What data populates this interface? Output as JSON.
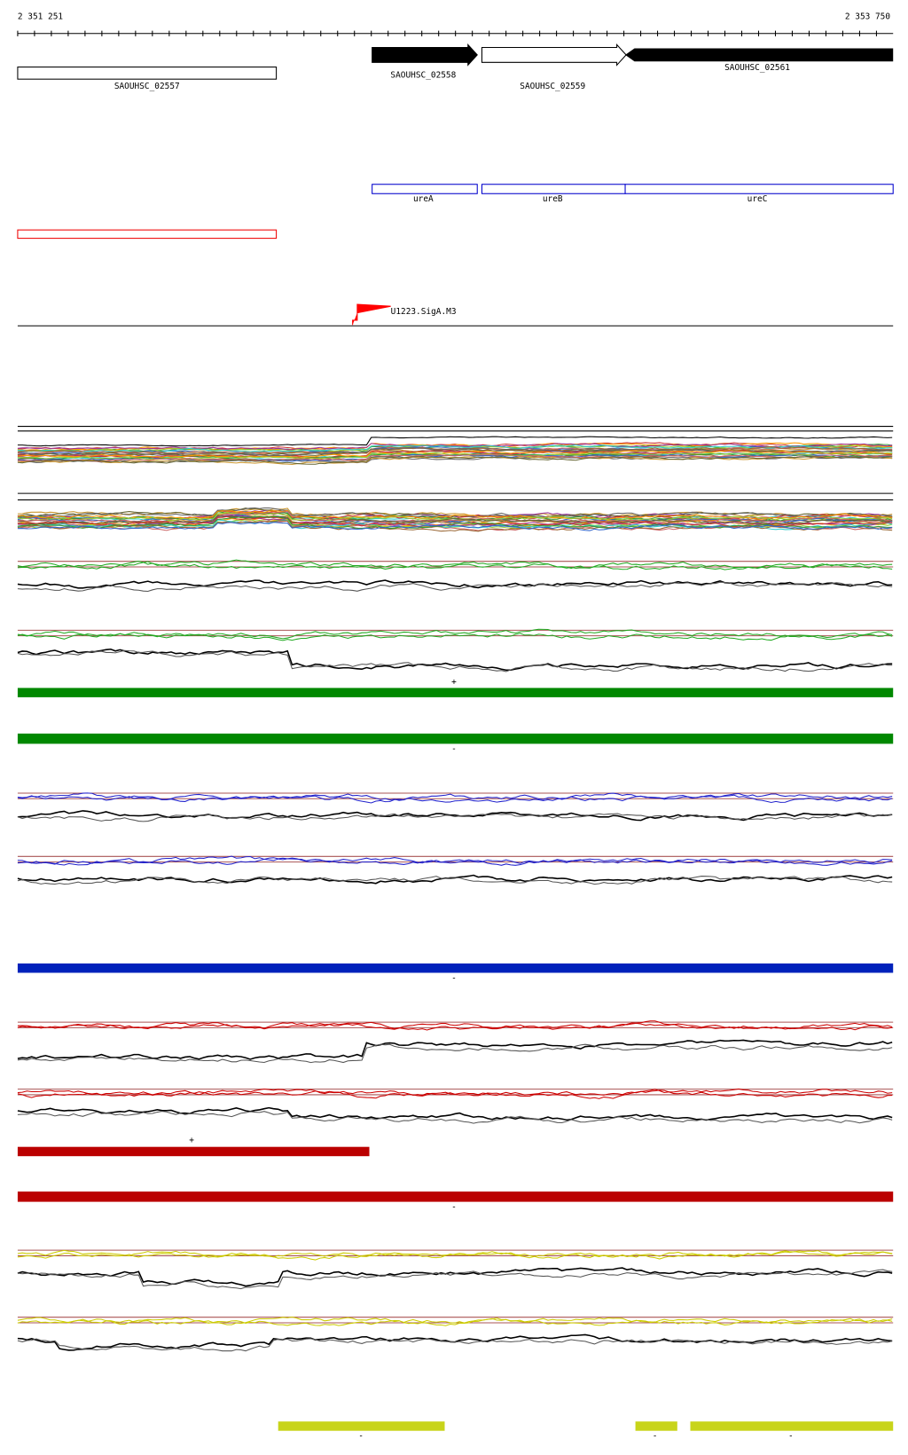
{
  "ruler": {
    "start": "2 351 251",
    "end": "2 353 750"
  },
  "genes": [
    {
      "label": "SAOUHSC_02557"
    },
    {
      "label": "SAOUHSC_02558"
    },
    {
      "label": "SAOUHSC_02559"
    },
    {
      "label": "SAOUHSC_02561"
    }
  ],
  "gene_names": [
    "ureA",
    "ureB",
    "ureC"
  ],
  "promoter": "U1223.SigA.M3",
  "strand_labels": [
    "+",
    "-",
    "-",
    "+",
    "-",
    "-",
    "-",
    "-"
  ]
}
